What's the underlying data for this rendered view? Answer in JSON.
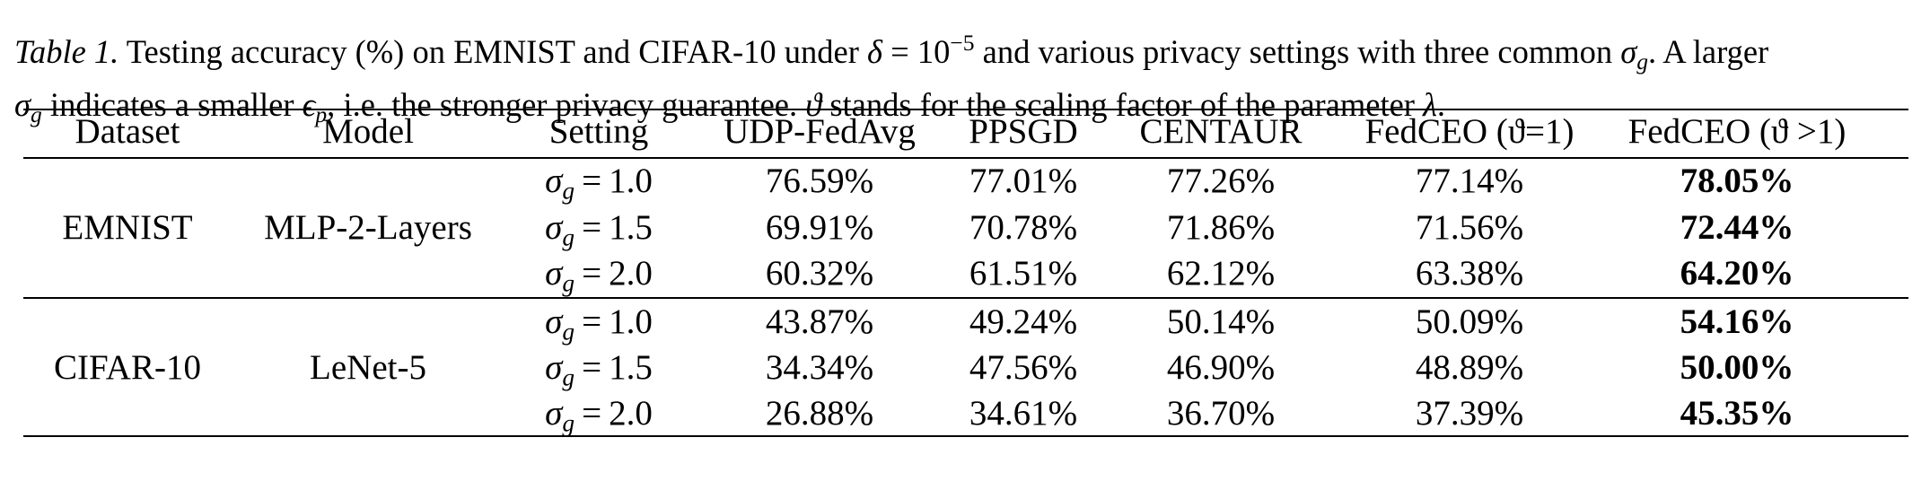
{
  "caption": {
    "label": "Table 1.",
    "text_1": "Testing accuracy (%) on EMNIST and CIFAR-10 under",
    "delta_sym": "δ",
    "eq": "=",
    "delta_base": "10",
    "delta_exp": "−5",
    "text_2": "and various privacy settings with three common",
    "sigma_sym": "σ",
    "sigma_sub": "g",
    "text_3": ". A larger",
    "text_4": "indicates a smaller",
    "eps_sym": "ϵ",
    "eps_sub": "p",
    "text_5": ", i.e. the stronger privacy guarantee.",
    "theta_sym": "ϑ",
    "text_6": "stands for the scaling factor of the parameter",
    "lambda_sym": "λ",
    "text_7": "."
  },
  "table": {
    "headers": [
      "Dataset",
      "Model",
      "Setting",
      "UDP-FedAvg",
      "PPSGD",
      "CENTAUR",
      "FedCEO (ϑ=1)",
      "FedCEO (ϑ >1)"
    ],
    "groups": [
      {
        "dataset": "EMNIST",
        "model": "MLP-2-Layers",
        "rows": [
          {
            "sigma": "σ",
            "sub": "g",
            "eq": "=",
            "value": "1.0",
            "cells": [
              "76.59%",
              "77.01%",
              "77.26%",
              "77.14%",
              "78.05%"
            ]
          },
          {
            "sigma": "σ",
            "sub": "g",
            "eq": "=",
            "value": "1.5",
            "cells": [
              "69.91%",
              "70.78%",
              "71.86%",
              "71.56%",
              "72.44%"
            ]
          },
          {
            "sigma": "σ",
            "sub": "g",
            "eq": "=",
            "value": "2.0",
            "cells": [
              "60.32%",
              "61.51%",
              "62.12%",
              "63.38%",
              "64.20%"
            ]
          }
        ]
      },
      {
        "dataset": "CIFAR-10",
        "model": "LeNet-5",
        "rows": [
          {
            "sigma": "σ",
            "sub": "g",
            "eq": "=",
            "value": "1.0",
            "cells": [
              "43.87%",
              "49.24%",
              "50.14%",
              "50.09%",
              "54.16%"
            ]
          },
          {
            "sigma": "σ",
            "sub": "g",
            "eq": "=",
            "value": "1.5",
            "cells": [
              "34.34%",
              "47.56%",
              "46.90%",
              "48.89%",
              "50.00%"
            ]
          },
          {
            "sigma": "σ",
            "sub": "g",
            "eq": "=",
            "value": "2.0",
            "cells": [
              "26.88%",
              "34.61%",
              "36.70%",
              "37.39%",
              "45.35%"
            ]
          }
        ]
      }
    ]
  }
}
